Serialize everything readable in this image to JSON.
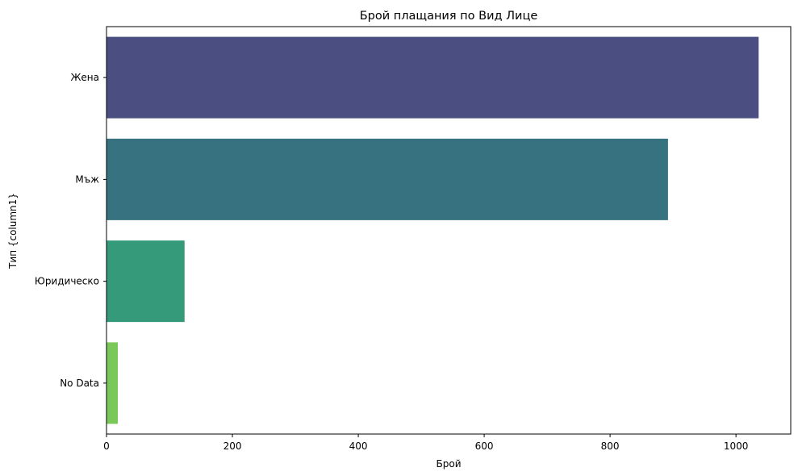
{
  "chart_data": {
    "type": "bar",
    "orientation": "horizontal",
    "title": "Брой плащания по Вид Лице",
    "xlabel": "Брой",
    "ylabel": "Тип {column1}",
    "categories": [
      "Жена",
      "Мъж",
      "Юридическо",
      "No Data"
    ],
    "values": [
      1036,
      892,
      124,
      18
    ],
    "colors": [
      "#4a4e80",
      "#36727f",
      "#359a7a",
      "#7bc85a"
    ],
    "xlim": [
      0,
      1087
    ],
    "xticks": [
      0,
      200,
      400,
      600,
      800,
      1000
    ],
    "grid": false,
    "legend": "none"
  }
}
